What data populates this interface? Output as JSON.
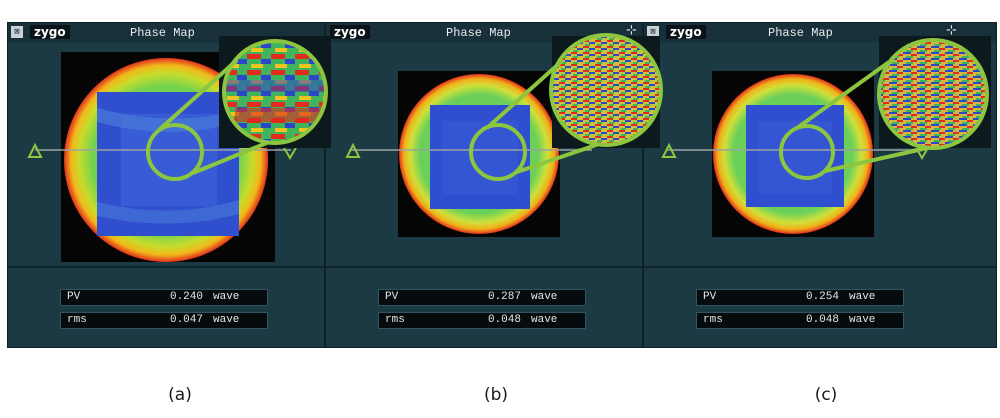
{
  "panels": [
    {
      "id": "a",
      "brand": "zygo",
      "title": "Phase Map",
      "close_glyph": "⊠",
      "pin_glyph": "",
      "icons": {
        "close": "close-box-icon",
        "brand": "zygo-logo",
        "zoom": "magnifier-callout"
      },
      "readouts": [
        {
          "label": "PV",
          "value": "0.240",
          "unit": "wave"
        },
        {
          "label": "rms",
          "value": "0.047",
          "unit": "wave"
        }
      ],
      "caption": "(a)"
    },
    {
      "id": "b",
      "brand": "zygo",
      "title": "Phase Map",
      "close_glyph": "",
      "pin_glyph": "⊹",
      "icons": {
        "brand": "zygo-logo",
        "pin": "pin-icon",
        "zoom": "magnifier-callout"
      },
      "readouts": [
        {
          "label": "PV",
          "value": "0.287",
          "unit": "wave"
        },
        {
          "label": "rms",
          "value": "0.048",
          "unit": "wave"
        }
      ],
      "caption": "(b)"
    },
    {
      "id": "c",
      "brand": "zygo",
      "title": "Phase Map",
      "close_glyph": "⊠",
      "pin_glyph": "⊹",
      "icons": {
        "close": "close-box-icon",
        "brand": "zygo-logo",
        "pin": "pin-icon",
        "zoom": "magnifier-callout"
      },
      "readouts": [
        {
          "label": "PV",
          "value": "0.254",
          "unit": "wave"
        },
        {
          "label": "rms",
          "value": "0.048",
          "unit": "wave"
        }
      ],
      "caption": "(c)"
    }
  ],
  "colors": {
    "panel_bg": "#1c3a44",
    "titlebar_bg": "#183039",
    "map_bg": "#050505",
    "surface_low": "#2b46c8",
    "surface_mid": "#47c36b",
    "surface_high": "#e8c21a",
    "surface_edge": "#e2301e",
    "callout": "#8cc63f",
    "profile_line": "#9aa3a0"
  }
}
